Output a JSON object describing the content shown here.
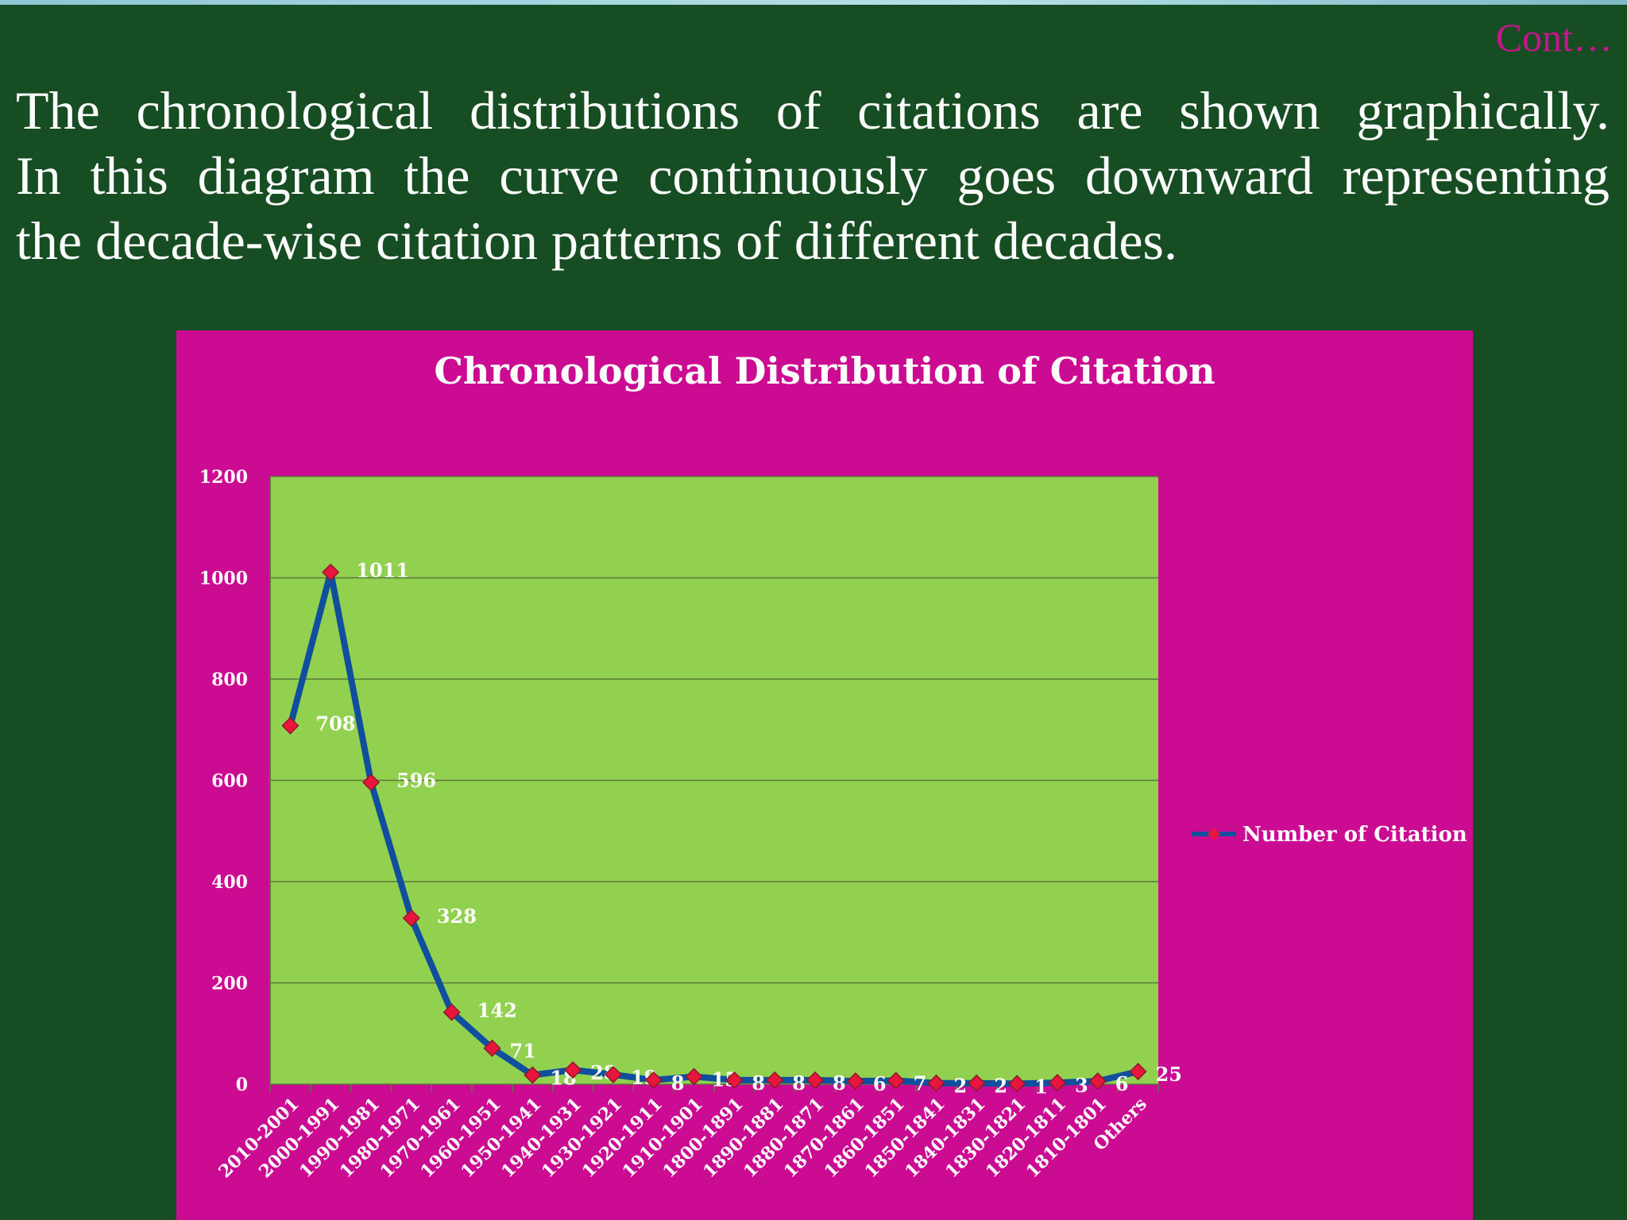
{
  "slide": {
    "continuation": "Cont…",
    "paragraph_lines": [
      "The chronological distributions of citations are shown graphically.",
      "In this diagram  the curve continuously goes downward representing",
      "the decade-wise citation patterns of different decades."
    ],
    "colors": {
      "background": "#174d22",
      "panel": "#cb0c93",
      "plot_area": "#92d050",
      "line": "#0f4f9e",
      "marker": "#e8153c"
    }
  },
  "chart_data": {
    "type": "line",
    "title": "Chronological Distribution of Citation",
    "xlabel": "",
    "ylabel": "",
    "categories": [
      "2010-2001",
      "2000-1991",
      "1990-1981",
      "1980-1971",
      "1970-1961",
      "1960-1951",
      "1950-1941",
      "1940-1931",
      "1930-1921",
      "1920-1911",
      "1910-1901",
      "1800-1891",
      "1890-1881",
      "1880-1871",
      "1870-1861",
      "1860-1851",
      "1850-1841",
      "1840-1831",
      "1830-1821",
      "1820-1811",
      "1810-1801",
      "Others"
    ],
    "series": [
      {
        "name": "Number of Citation",
        "values": [
          708,
          1011,
          596,
          328,
          142,
          71,
          18,
          28,
          19,
          8,
          15,
          8,
          8,
          8,
          6,
          7,
          2,
          2,
          1,
          3,
          6,
          25
        ],
        "data_labels": [
          "708",
          "1011",
          "596",
          "328",
          "142",
          "71",
          "18",
          "28",
          "19",
          "8",
          "15",
          "8",
          "8",
          "8",
          "6",
          "7",
          "2",
          "2",
          "1",
          "3",
          "6",
          "25"
        ]
      }
    ],
    "ylim": [
      0,
      1200
    ],
    "yticks": [
      0,
      200,
      400,
      600,
      800,
      1000,
      1200
    ],
    "ytick_labels": [
      "0",
      "200",
      "400",
      "600",
      "800",
      "1000",
      "1200"
    ],
    "grid": true,
    "legend_position": "right"
  }
}
